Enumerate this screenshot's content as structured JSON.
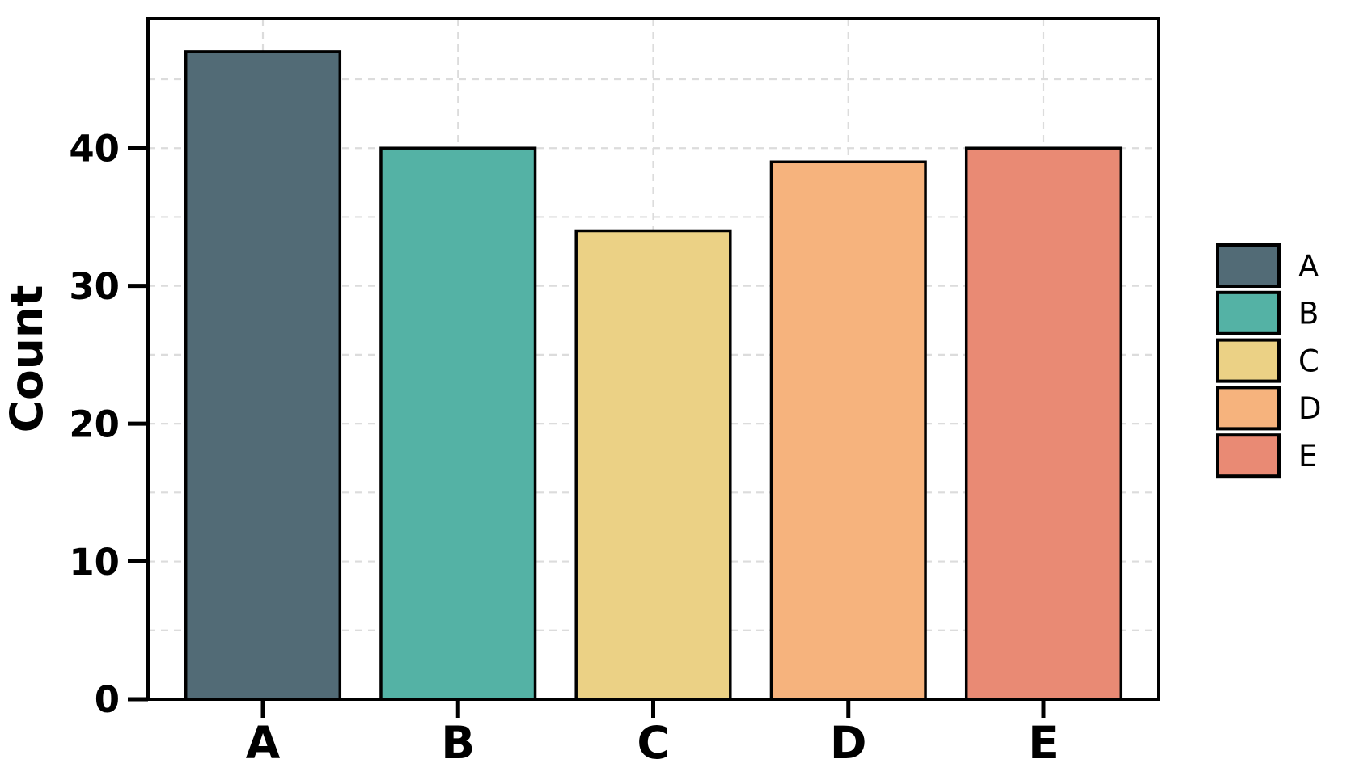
{
  "chart_data": {
    "type": "bar",
    "title": "",
    "xlabel": "",
    "ylabel": "Count",
    "categories": [
      "A",
      "B",
      "C",
      "D",
      "E"
    ],
    "values": [
      47,
      40,
      34,
      39,
      40
    ],
    "bar_colors": [
      "#526B76",
      "#54B2A5",
      "#EBD185",
      "#F6B37D",
      "#E98A74"
    ],
    "ylim": [
      0,
      49.4
    ],
    "yticks": [
      0,
      10,
      20,
      30,
      40
    ],
    "ytick_labels": [
      "0",
      "10",
      "20",
      "30",
      "40"
    ],
    "grid": {
      "style": "dashed",
      "color": "#DCDCDC",
      "horizontal_interval": 5,
      "vertical": "at category centers"
    },
    "legend": {
      "position": "right",
      "entries": [
        {
          "label": "A",
          "color": "#526B76"
        },
        {
          "label": "B",
          "color": "#54B2A5"
        },
        {
          "label": "C",
          "color": "#EBD185"
        },
        {
          "label": "D",
          "color": "#F6B37D"
        },
        {
          "label": "E",
          "color": "#E98A74"
        }
      ]
    }
  },
  "styles": {
    "background": "#FFFFFF",
    "edge_color": "#000000",
    "text_color": "#000000",
    "grid_color": "#DCDCDC"
  }
}
